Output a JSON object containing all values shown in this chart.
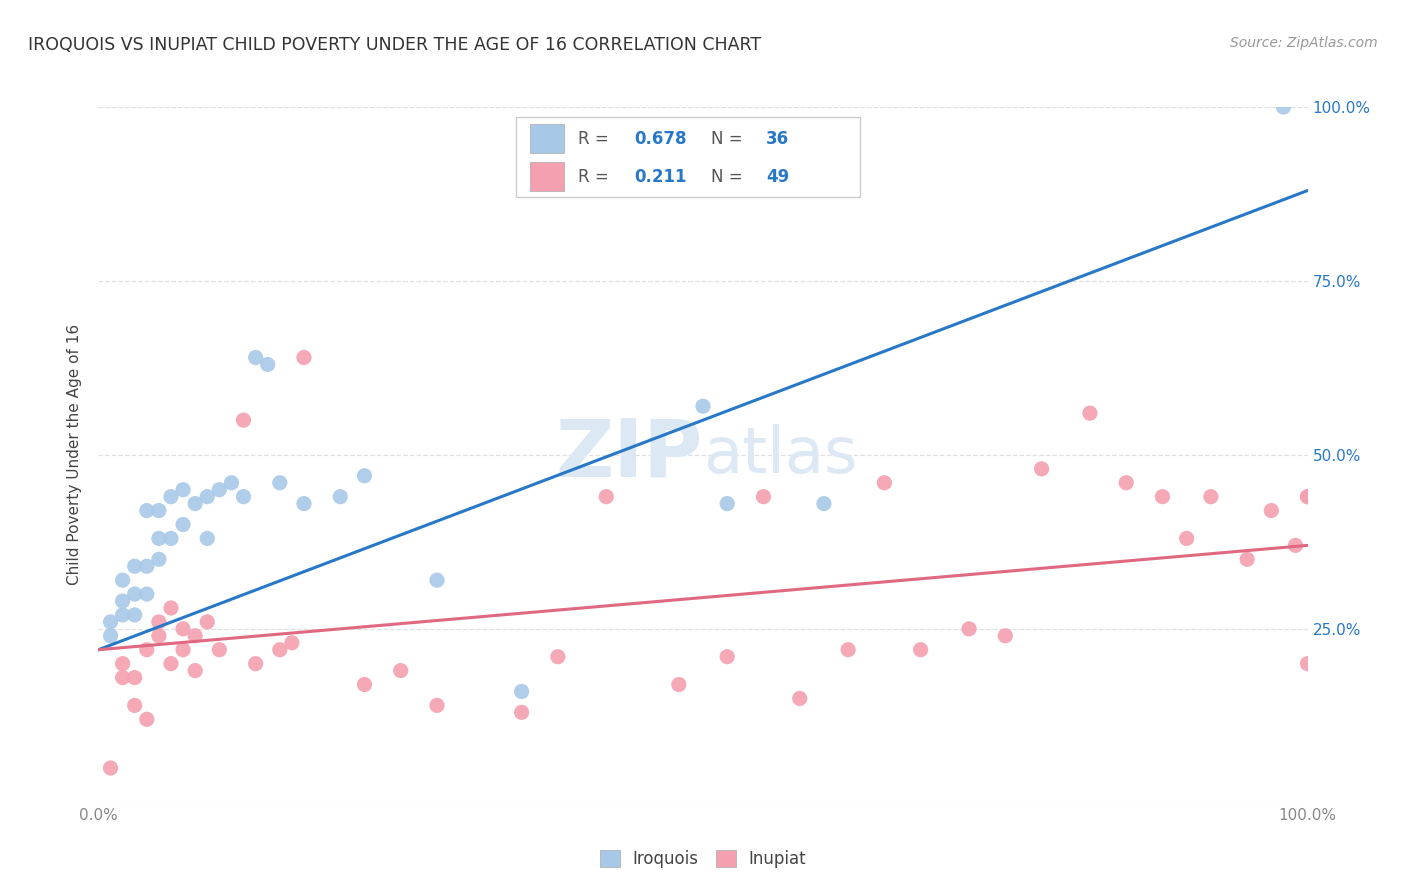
{
  "title": "IROQUOIS VS INUPIAT CHILD POVERTY UNDER THE AGE OF 16 CORRELATION CHART",
  "source": "Source: ZipAtlas.com",
  "ylabel": "Child Poverty Under the Age of 16",
  "xlim": [
    0,
    1
  ],
  "ylim": [
    0,
    1
  ],
  "iroquois_color": "#a8c8e8",
  "inupiat_color": "#f4a0b0",
  "iroquois_line_color": "#2878c8",
  "inupiat_line_color": "#e06880",
  "right_tick_color": "#2878c8",
  "background_color": "#ffffff",
  "grid_color": "#dddddd",
  "watermark_color": "#dce8f4",
  "iroquois_x": [
    0.01,
    0.01,
    0.02,
    0.02,
    0.02,
    0.03,
    0.03,
    0.03,
    0.04,
    0.04,
    0.04,
    0.05,
    0.05,
    0.05,
    0.06,
    0.06,
    0.07,
    0.07,
    0.08,
    0.09,
    0.09,
    0.1,
    0.11,
    0.12,
    0.13,
    0.14,
    0.15,
    0.17,
    0.2,
    0.22,
    0.28,
    0.35,
    0.5,
    0.52,
    0.6,
    0.98
  ],
  "iroquois_y": [
    0.24,
    0.26,
    0.27,
    0.29,
    0.32,
    0.27,
    0.3,
    0.34,
    0.3,
    0.34,
    0.42,
    0.35,
    0.38,
    0.42,
    0.38,
    0.44,
    0.4,
    0.45,
    0.43,
    0.44,
    0.38,
    0.45,
    0.46,
    0.44,
    0.64,
    0.63,
    0.46,
    0.43,
    0.44,
    0.47,
    0.32,
    0.16,
    0.57,
    0.43,
    0.43,
    1.0
  ],
  "inupiat_x": [
    0.01,
    0.02,
    0.02,
    0.03,
    0.03,
    0.04,
    0.04,
    0.05,
    0.05,
    0.06,
    0.06,
    0.07,
    0.07,
    0.08,
    0.08,
    0.09,
    0.1,
    0.12,
    0.13,
    0.15,
    0.16,
    0.17,
    0.22,
    0.25,
    0.28,
    0.35,
    0.38,
    0.42,
    0.48,
    0.52,
    0.55,
    0.58,
    0.62,
    0.65,
    0.68,
    0.72,
    0.75,
    0.78,
    0.82,
    0.85,
    0.88,
    0.9,
    0.92,
    0.95,
    0.97,
    0.99,
    1.0,
    1.0,
    1.0
  ],
  "inupiat_y": [
    0.05,
    0.18,
    0.2,
    0.14,
    0.18,
    0.12,
    0.22,
    0.24,
    0.26,
    0.2,
    0.28,
    0.25,
    0.22,
    0.24,
    0.19,
    0.26,
    0.22,
    0.55,
    0.2,
    0.22,
    0.23,
    0.64,
    0.17,
    0.19,
    0.14,
    0.13,
    0.21,
    0.44,
    0.17,
    0.21,
    0.44,
    0.15,
    0.22,
    0.46,
    0.22,
    0.25,
    0.24,
    0.48,
    0.56,
    0.46,
    0.44,
    0.38,
    0.44,
    0.35,
    0.42,
    0.37,
    0.44,
    0.2,
    0.44
  ],
  "iroquois_line_x0": 0.0,
  "iroquois_line_y0": 0.22,
  "iroquois_line_x1": 1.0,
  "iroquois_line_y1": 0.88,
  "inupiat_line_x0": 0.0,
  "inupiat_line_y0": 0.22,
  "inupiat_line_x1": 1.0,
  "inupiat_line_y1": 0.37
}
